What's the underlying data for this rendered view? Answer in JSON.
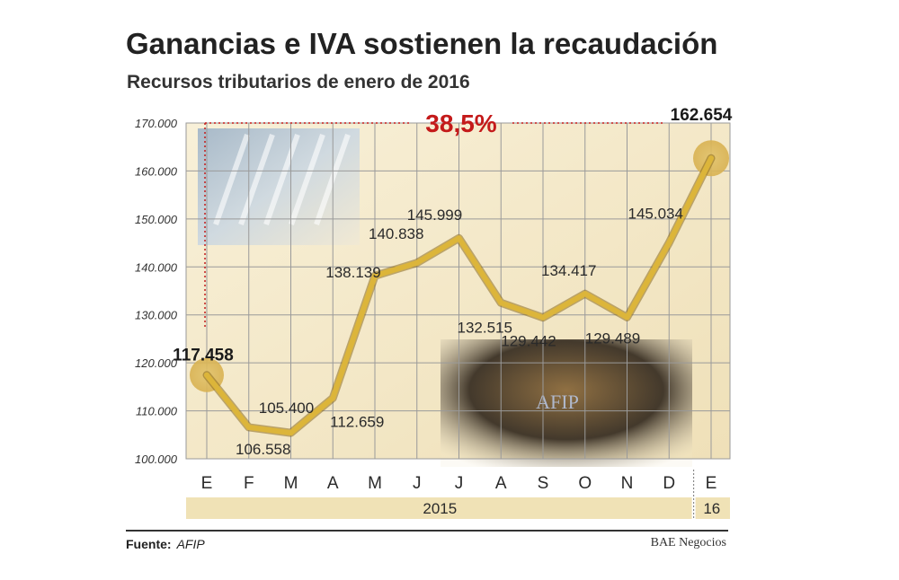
{
  "header": {
    "title": "Ganancias e IVA sostienen la recaudación",
    "subtitle": "Recursos tributarios de enero de 2016"
  },
  "chart_data": {
    "type": "line",
    "categories": [
      "E",
      "F",
      "M",
      "A",
      "M",
      "J",
      "J",
      "A",
      "S",
      "O",
      "N",
      "D",
      "E"
    ],
    "values": [
      117458,
      106558,
      105400,
      112659,
      138139,
      140838,
      145999,
      132515,
      129442,
      134417,
      129489,
      145034,
      162654
    ],
    "labels": [
      "117.458",
      "106.558",
      "105.400",
      "112.659",
      "138.139",
      "140.838",
      "145.999",
      "132.515",
      "129.442",
      "134.417",
      "129.489",
      "145.034",
      "162.654"
    ],
    "ylim": [
      100000,
      170000
    ],
    "yticks": [
      "100.000",
      "110.000",
      "120.000",
      "130.000",
      "140.000",
      "150.000",
      "160.000",
      "170.000"
    ],
    "year_labels": [
      "2015",
      "16"
    ],
    "annotation": "38,5%",
    "grid": true,
    "line_color": "#dcb53a",
    "annotation_color": "#c41a1a"
  },
  "footer": {
    "source_label": "Fuente:",
    "source_value": "AFIP",
    "brand": "BAE Negocios"
  }
}
